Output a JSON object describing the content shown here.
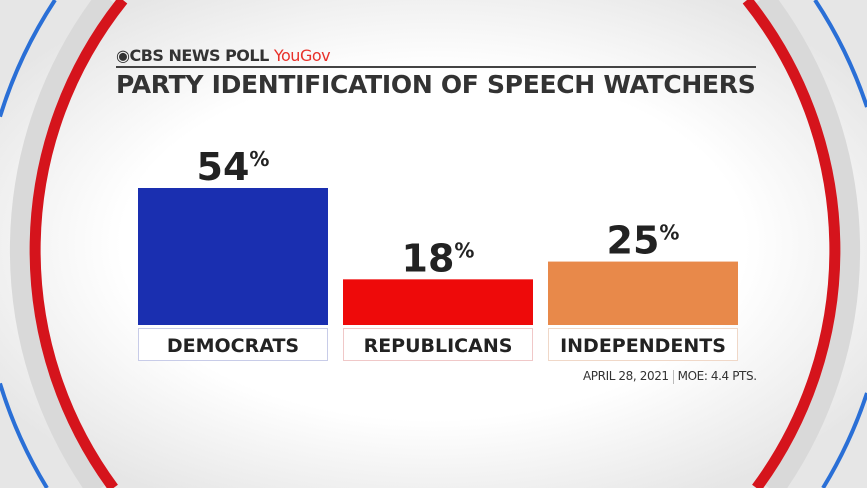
{
  "header": {
    "brand": "CBS NEWS POLL",
    "partner": "YouGov"
  },
  "footer": {
    "date": "APRIL 28, 2021",
    "moe": "MOE: 4.4 PTS."
  },
  "chart_data": {
    "type": "bar",
    "title": "PARTY IDENTIFICATION OF SPEECH WATCHERS",
    "categories": [
      "DEMOCRATS",
      "REPUBLICANS",
      "INDEPENDENTS"
    ],
    "values": [
      54,
      18,
      25
    ],
    "data_labels": [
      "54",
      "18",
      "25"
    ],
    "unit": "%",
    "colors": [
      "#1a2fb0",
      "#ee0a0a",
      "#e8894a"
    ],
    "ylim": [
      0,
      54
    ],
    "grid": false
  }
}
